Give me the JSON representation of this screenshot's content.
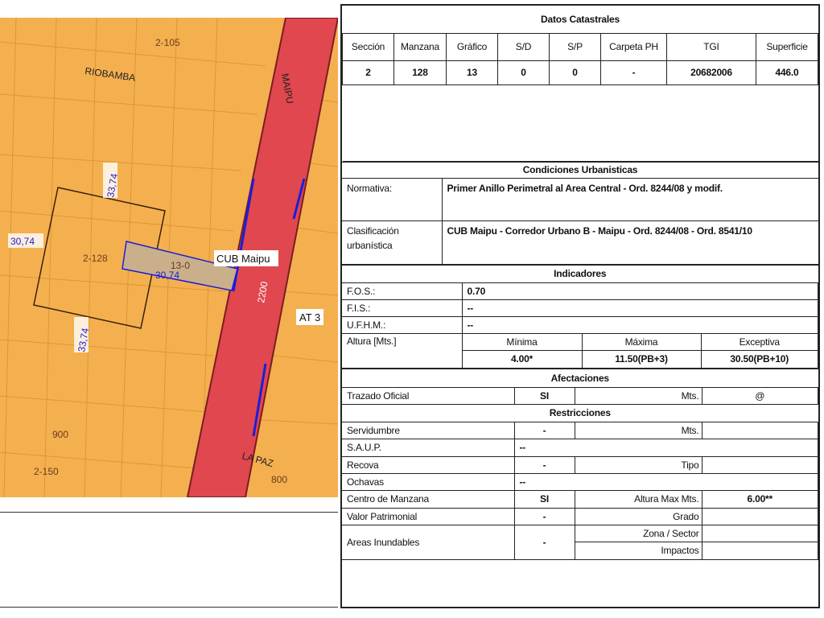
{
  "map": {
    "labels": {
      "block_top": "2-105",
      "street_riobamba": "RIOBAMBA",
      "street_maipu": "MAIPU",
      "dim_top": "33,74",
      "dim_left": "30,74",
      "block_main": "2-128",
      "parcel": "13-0",
      "dim_parcel": "30,74",
      "zone_tag": "CUB Maipu",
      "dim_bottom": "33,74",
      "number_2200": "2200",
      "zone_at3": "AT 3",
      "number_900": "900",
      "block_150": "2-150",
      "street_lapaz": "LA PAZ",
      "number_800": "800"
    },
    "colors": {
      "zone": "#f4b04f",
      "road": "#e0474f",
      "edge": "#1d1dd8"
    }
  },
  "datos": {
    "title": "Datos Catastrales",
    "headers": [
      "Sección",
      "Manzana",
      "Gráfico",
      "S/D",
      "S/P",
      "Carpeta PH",
      "TGI",
      "Superficie"
    ],
    "values": [
      "2",
      "128",
      "13",
      "0",
      "0",
      "-",
      "20682006",
      "446.0"
    ]
  },
  "condiciones": {
    "title": "Condiciones Urbanisticas",
    "normativa_label": "Normativa:",
    "normativa_value": "Primer Anillo Perimetral al Area Central - Ord. 8244/08 y modif.",
    "clasif_label": "Clasificación urbanística",
    "clasif_value": "CUB Maipu - Corredor Urbano B - Maipu - Ord. 8244/08 - Ord. 8541/10"
  },
  "indicadores": {
    "title": "Indicadores",
    "fos_label": "F.O.S.:",
    "fos": "0.70",
    "fis_label": "F.I.S.:",
    "fis": "--",
    "ufhm_label": "U.F.H.M.:",
    "ufhm": "--",
    "altura_label": "Altura [Mts.]",
    "min_label": "Mínima",
    "max_label": "Máxima",
    "exc_label": "Exceptiva",
    "min": "4.00*",
    "max": "11.50(PB+3)",
    "exc": "30.50(PB+10)"
  },
  "afectaciones": {
    "title": "Afectaciones",
    "trazado_label": "Trazado Oficial",
    "trazado": "SI",
    "mts_label": "Mts.",
    "mts": "@"
  },
  "restricciones": {
    "title": "Restricciones",
    "servidumbre_label": "Servidumbre",
    "servidumbre": "-",
    "serv_mts_label": "Mts.",
    "saup_label": "S.A.U.P.",
    "saup": "--",
    "recova_label": "Recova",
    "recova": "-",
    "tipo_label": "Tipo",
    "ochavas_label": "Ochavas",
    "ochavas": "--",
    "centro_label": "Centro de Manzana",
    "centro": "SI",
    "altura_max_label": "Altura Max Mts.",
    "altura_max": "6.00**",
    "valor_label": "Valor Patrimonial",
    "valor": "-",
    "grado_label": "Grado",
    "areas_label": "Areas Inundables",
    "areas": "-",
    "zona_label": "Zona / Sector",
    "impactos_label": "Impactos"
  }
}
